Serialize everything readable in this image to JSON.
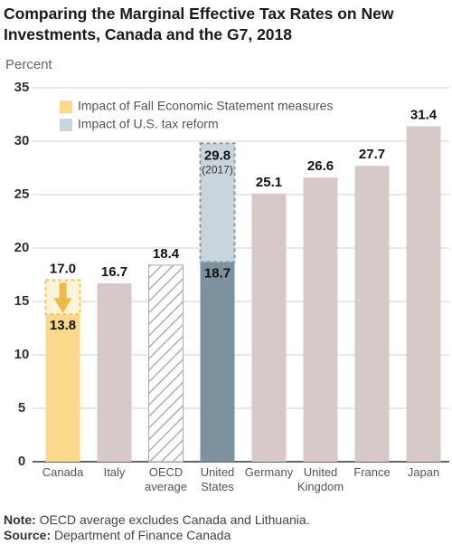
{
  "chart_data": {
    "type": "bar",
    "title": "Comparing the Marginal Effective Tax Rates on New Investments, Canada and the G7, 2018",
    "y_label": "Percent",
    "categories": [
      "Canada",
      "Italy",
      "OECD average",
      "United States",
      "Germany",
      "United Kingdom",
      "France",
      "Japan"
    ],
    "values": [
      13.8,
      16.7,
      18.4,
      18.7,
      25.1,
      26.6,
      27.7,
      31.4
    ],
    "colors": [
      "#fcd98c",
      "#d6c9c7",
      "#a9a9a9",
      "#7d919f",
      "#d6c9c7",
      "#d6c9c7",
      "#d6c9c7",
      "#d6c9c7"
    ],
    "hatched": [
      false,
      false,
      true,
      false,
      false,
      false,
      false,
      false
    ],
    "series": [
      {
        "name": "Impact of Fall Economic Statement measures",
        "color": "#fcd98c",
        "values": [
          17.0,
          null,
          null,
          null,
          null,
          null,
          null,
          null
        ],
        "value_labels": [
          "17.0",
          null,
          null,
          null,
          null,
          null,
          null,
          null
        ]
      },
      {
        "name": "Impact of U.S. tax reform",
        "color": "#c9d5dd",
        "values": [
          null,
          null,
          null,
          29.8,
          null,
          null,
          null,
          null
        ],
        "notes": [
          null,
          null,
          null,
          "(2017)",
          null,
          null,
          null,
          null
        ]
      }
    ],
    "ylim": [
      0,
      35
    ],
    "yticks": [
      0,
      5,
      10,
      15,
      20,
      25,
      30,
      35
    ],
    "grid": true,
    "note_label": "Note:",
    "note": "OECD average excludes Canada and Lithuania.",
    "source_label": "Source:",
    "source": "Department of Finance Canada"
  }
}
